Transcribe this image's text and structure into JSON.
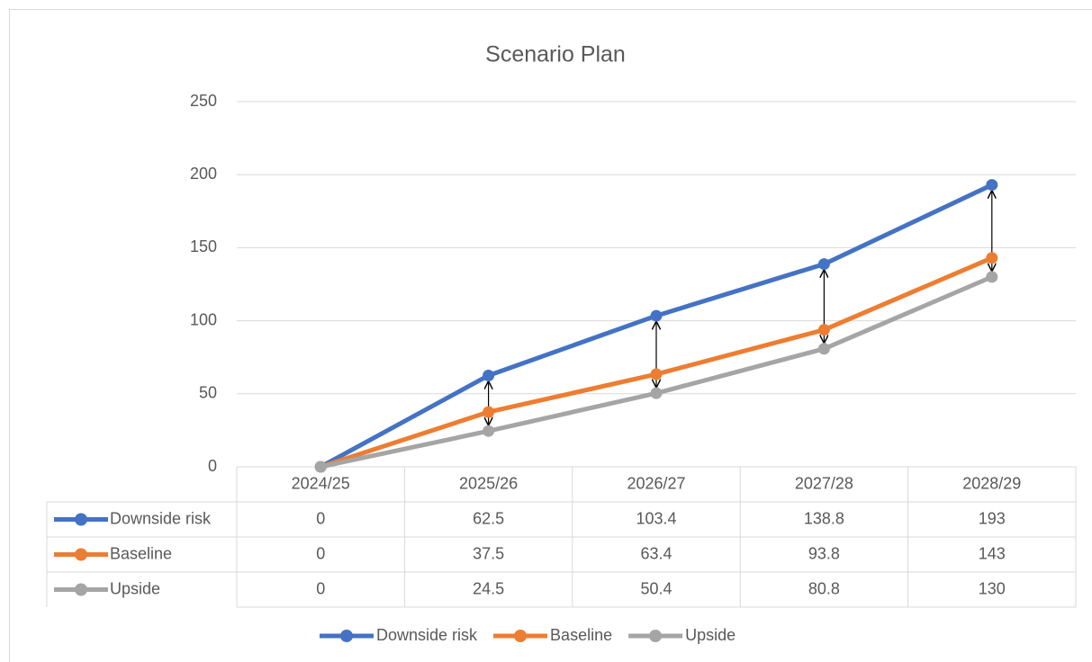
{
  "chart_data": {
    "type": "line",
    "title": "Scenario Plan",
    "categories": [
      "2024/25",
      "2025/26",
      "2026/27",
      "2027/28",
      "2028/29"
    ],
    "series": [
      {
        "name": "Downside risk",
        "color": "#4472c4",
        "values": [
          0,
          62.5,
          103.4,
          138.8,
          193
        ]
      },
      {
        "name": "Baseline",
        "color": "#ed7d31",
        "values": [
          0,
          37.5,
          63.4,
          93.8,
          143
        ]
      },
      {
        "name": "Upside",
        "color": "#a5a5a5",
        "values": [
          0,
          24.5,
          50.4,
          80.8,
          130
        ]
      }
    ],
    "ylim": [
      0,
      250
    ],
    "yticks": [
      0,
      50,
      100,
      150,
      200,
      250
    ],
    "grid": true,
    "legend": "bottom",
    "data_table": true
  }
}
